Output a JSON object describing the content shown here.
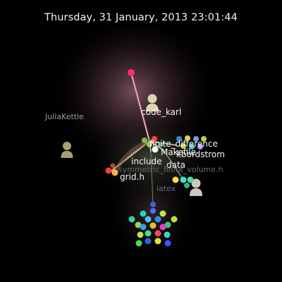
{
  "timestamp": "Thursday, 31 January, 2013 23:01:44",
  "users": {
    "code_karl": "code_karl",
    "julia_kettle": "JuliaKettle",
    "kbordstrom": "kbordstrom"
  },
  "files": {
    "finite_difference": "finite_difference",
    "makefile": "Makefile",
    "include": "include",
    "data": "data",
    "symmetric_finite_volume": "symmetric_finite_volume.h",
    "grid": "grid.h",
    "latex": "latex"
  },
  "colors": {
    "background": "#000000",
    "glow": "#c87a9a",
    "avatar": "#d8d2a8",
    "avatar_dim": "#8a8a5a"
  },
  "icons": {
    "avatar": "person-silhouette-icon"
  }
}
